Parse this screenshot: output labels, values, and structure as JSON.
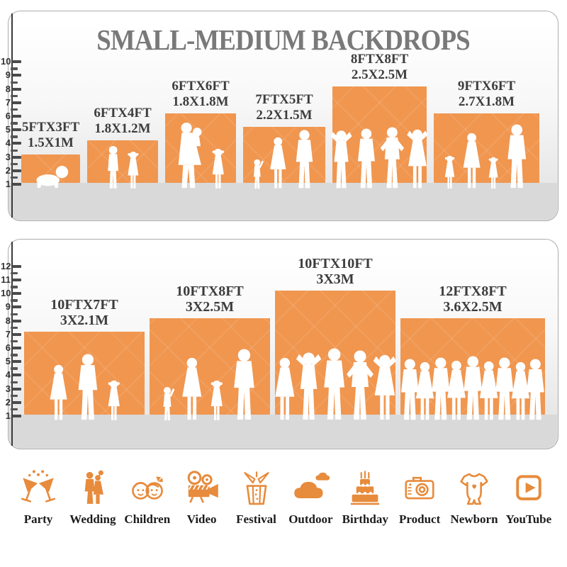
{
  "title": "SMALL-MEDIUM BACKDROPS",
  "colors": {
    "bar_orange": "#F0964F",
    "icon_orange": "#E78B3C",
    "title_gray": "#797979",
    "label_dark": "#3D3D3D",
    "floor_gray": "#D9D9D9",
    "tick_dark": "#4A4A4A"
  },
  "chart_data": [
    {
      "type": "bar",
      "panel": "small-medium-backdrops",
      "title": "SMALL-MEDIUM BACKDROPS",
      "ruler_unit": "ft",
      "ruler_ticks": [
        1,
        2,
        3,
        4,
        5,
        6,
        7,
        8,
        9,
        10
      ],
      "ruler_max": 10,
      "bars": [
        {
          "label_ft": "5FTX3FT",
          "label_m": "1.5X1M",
          "width_ft": 5,
          "height_ft": 3,
          "people": [
            "baby"
          ]
        },
        {
          "label_ft": "6FTX4FT",
          "label_m": "1.8X1.2M",
          "width_ft": 6,
          "height_ft": 4,
          "people": [
            "boy",
            "girl"
          ]
        },
        {
          "label_ft": "6FTX6FT",
          "label_m": "1.8X1.8M",
          "width_ft": 6,
          "height_ft": 6,
          "people": [
            "woman-baby",
            "girl"
          ]
        },
        {
          "label_ft": "7FTX5FT",
          "label_m": "2.2X1.5M",
          "width_ft": 7,
          "height_ft": 5,
          "people": [
            "toddler",
            "woman",
            "man"
          ]
        },
        {
          "label_ft": "8FTX8FT",
          "label_m": "2.5X2.5M",
          "width_ft": 8,
          "height_ft": 8,
          "people": [
            "man-armsup",
            "man",
            "man-hips",
            "woman-armsup"
          ]
        },
        {
          "label_ft": "9FTX6FT",
          "label_m": "2.7X1.8M",
          "width_ft": 9,
          "height_ft": 6,
          "people": [
            "girl",
            "woman",
            "girl",
            "man"
          ]
        }
      ]
    },
    {
      "type": "bar",
      "panel": "large-backdrops",
      "title": "",
      "ruler_unit": "ft",
      "ruler_ticks": [
        1,
        2,
        3,
        4,
        5,
        6,
        7,
        8,
        9,
        10,
        11,
        12
      ],
      "ruler_max": 12,
      "bars": [
        {
          "label_ft": "10FTX7FT",
          "label_m": "3X2.1M",
          "width_ft": 10,
          "height_ft": 7,
          "people": [
            "woman",
            "man",
            "girl"
          ]
        },
        {
          "label_ft": "10FTX8FT",
          "label_m": "3X2.5M",
          "width_ft": 10,
          "height_ft": 8,
          "people": [
            "toddler",
            "woman",
            "girl",
            "man"
          ]
        },
        {
          "label_ft": "10FTX10FT",
          "label_m": "3X3M",
          "width_ft": 10,
          "height_ft": 10,
          "people": [
            "woman",
            "man-armsup",
            "man",
            "man-hips",
            "woman-armsup"
          ]
        },
        {
          "label_ft": "12FTX8FT",
          "label_m": "3.6X2.5M",
          "width_ft": 12,
          "height_ft": 8,
          "people": [
            "man",
            "woman",
            "man",
            "woman",
            "man",
            "woman",
            "man",
            "woman",
            "man"
          ]
        }
      ]
    }
  ],
  "categories": [
    {
      "label": "Party",
      "icon": "party-icon"
    },
    {
      "label": "Wedding",
      "icon": "wedding-icon"
    },
    {
      "label": "Children",
      "icon": "children-icon"
    },
    {
      "label": "Video",
      "icon": "video-camera-icon"
    },
    {
      "label": "Festival",
      "icon": "festival-gift-icon"
    },
    {
      "label": "Outdoor",
      "icon": "cloud-icon"
    },
    {
      "label": "Birthday",
      "icon": "birthday-cake-icon"
    },
    {
      "label": "Product",
      "icon": "photo-camera-icon"
    },
    {
      "label": "Newborn",
      "icon": "onesie-icon"
    },
    {
      "label": "YouTube",
      "icon": "youtube-play-icon"
    }
  ]
}
